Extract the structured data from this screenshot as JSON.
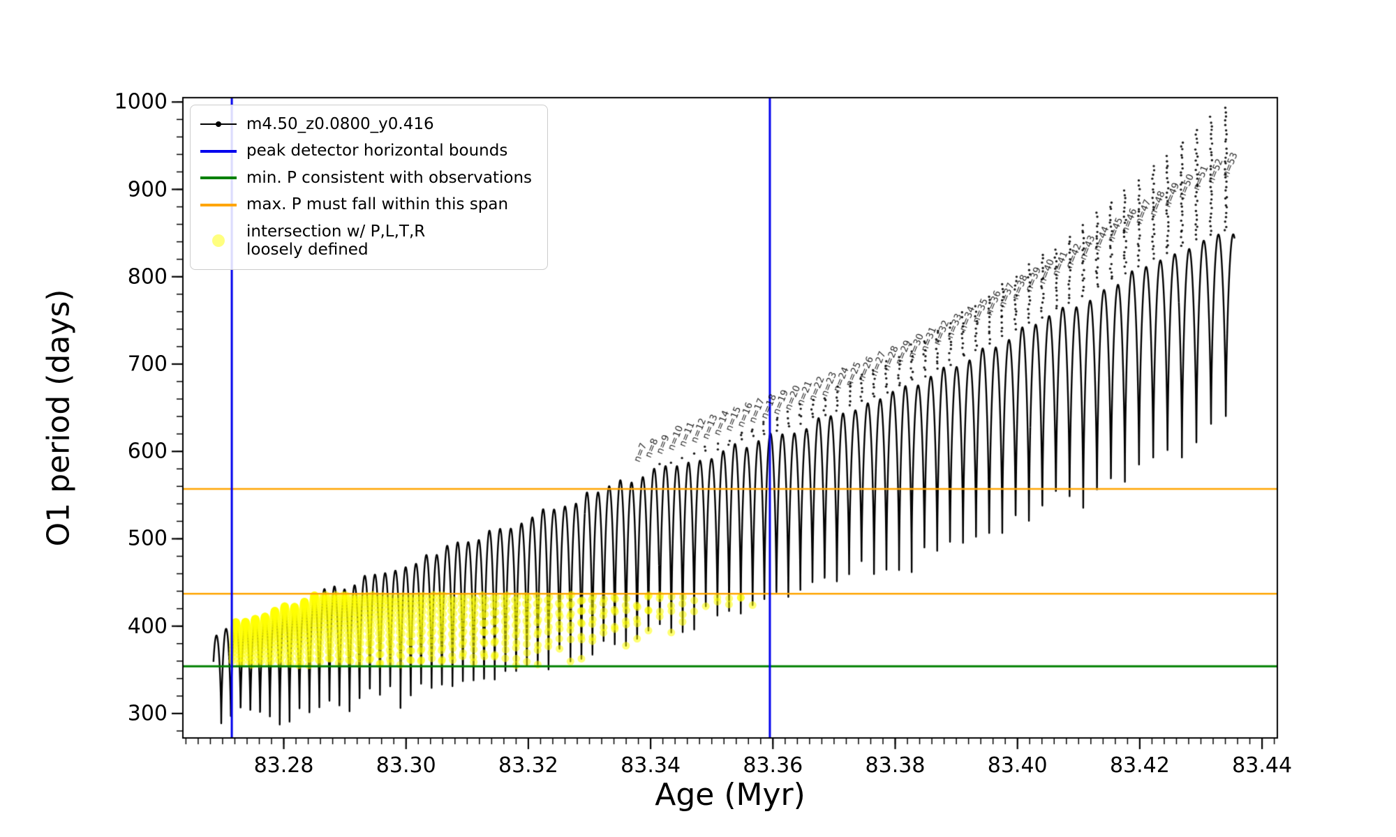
{
  "chart_data": {
    "type": "line",
    "title": "",
    "xlabel": "Age (Myr)",
    "ylabel": "O1 period (days)",
    "xlim": [
      83.2635,
      83.4425
    ],
    "ylim": [
      272,
      1005
    ],
    "x_major_ticks": [
      83.28,
      83.3,
      83.32,
      83.34,
      83.36,
      83.38,
      83.4,
      83.42,
      83.44
    ],
    "x_tick_decimals": 2,
    "x_minor_step": 0.002,
    "y_major_ticks": [
      300,
      400,
      500,
      600,
      700,
      800,
      900,
      1000
    ],
    "y_minor_step": 20,
    "series": [
      {
        "name": "m4.50_z0.0800_y0.416",
        "color": "#000000",
        "x_range": [
          83.2685,
          83.4355
        ],
        "upper_envelope": [
          [
            83.2685,
            392
          ],
          [
            83.28,
            423
          ],
          [
            83.29,
            447
          ],
          [
            83.3,
            472
          ],
          [
            83.31,
            498
          ],
          [
            83.32,
            524
          ],
          [
            83.33,
            550
          ],
          [
            83.34,
            576
          ],
          [
            83.35,
            596
          ],
          [
            83.36,
            617
          ],
          [
            83.37,
            640
          ],
          [
            83.38,
            666
          ],
          [
            83.39,
            698
          ],
          [
            83.4,
            735
          ],
          [
            83.41,
            770
          ],
          [
            83.42,
            808
          ],
          [
            83.43,
            838
          ],
          [
            83.4355,
            850
          ]
        ],
        "lower_envelope": [
          [
            83.2685,
            288
          ],
          [
            83.28,
            296
          ],
          [
            83.29,
            305
          ],
          [
            83.3,
            316
          ],
          [
            83.31,
            330
          ],
          [
            83.32,
            345
          ],
          [
            83.33,
            362
          ],
          [
            83.34,
            383
          ],
          [
            83.35,
            403
          ],
          [
            83.36,
            425
          ],
          [
            83.37,
            445
          ],
          [
            83.38,
            465
          ],
          [
            83.39,
            488
          ],
          [
            83.4,
            513
          ],
          [
            83.41,
            540
          ],
          [
            83.42,
            572
          ],
          [
            83.43,
            612
          ],
          [
            83.4355,
            645
          ]
        ],
        "spike_above_envelope": [
          [
            83.2685,
            0
          ],
          [
            83.33,
            3
          ],
          [
            83.34,
            6
          ],
          [
            83.35,
            13
          ],
          [
            83.36,
            23
          ],
          [
            83.37,
            32
          ],
          [
            83.38,
            43
          ],
          [
            83.39,
            56
          ],
          [
            83.4,
            70
          ],
          [
            83.41,
            86
          ],
          [
            83.42,
            106
          ],
          [
            83.43,
            138
          ],
          [
            83.4355,
            150
          ]
        ],
        "oscillation": {
          "freq_start_cycles_per_myr": 642,
          "freq_end_cycles_per_myr": 402,
          "arch_power": 0.6
        }
      }
    ],
    "vlines": {
      "x": [
        83.2715,
        83.3595
      ],
      "color": "#0000ee",
      "label": "peak detector horizontal bounds"
    },
    "hline_green": {
      "y": 354,
      "color": "#008000",
      "label": "min. P consistent with observations"
    },
    "hlines_orange": {
      "y": [
        437,
        557
      ],
      "color": "#ffa500",
      "label": "max. P must fall within this span"
    },
    "highlight": {
      "x_range": [
        83.2715,
        83.3595
      ],
      "y_range": [
        355,
        436
      ],
      "color": "#ffff00",
      "opacity": 0.55,
      "label": "intersection w/ P,L,T,R\nloosely defined"
    },
    "mode_labels": {
      "prefix": "n=",
      "anchor_x": 83.357,
      "anchor_n": 17,
      "n_min": 7,
      "n_max": 53
    }
  },
  "legend": {
    "entries": [
      {
        "swatch": "line-marker",
        "color": "#000000",
        "label": "m4.50_z0.0800_y0.416"
      },
      {
        "swatch": "line",
        "color": "#0000ee",
        "label": "peak detector horizontal bounds"
      },
      {
        "swatch": "line",
        "color": "#008000",
        "label": "min. P consistent with observations"
      },
      {
        "swatch": "line",
        "color": "#ffa500",
        "label": "max. P must fall within this span"
      },
      {
        "swatch": "marker",
        "color": "#ffff00",
        "label": "intersection w/ P,L,T,R\nloosely defined"
      }
    ]
  }
}
